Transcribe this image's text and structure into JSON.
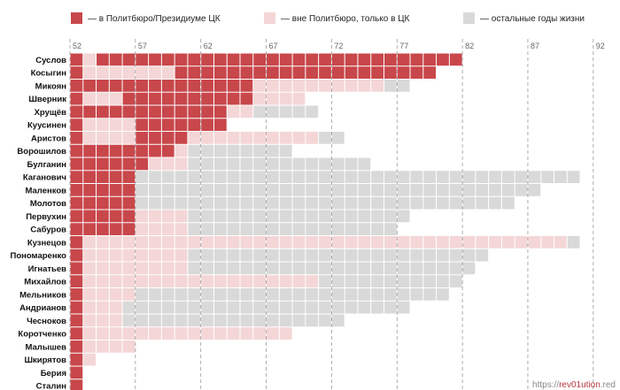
{
  "chart_data": {
    "type": "heatmap",
    "legend": [
      {
        "key": "pb",
        "label": "— в Политбюро/Президиуме ЦК",
        "color": "#c8474b"
      },
      {
        "key": "ck",
        "label": "— вне Политбюро, только в ЦК",
        "color": "#f4d6d6"
      },
      {
        "key": "life",
        "label": "— остальные годы жизни",
        "color": "#d9d9d9"
      }
    ],
    "x_ticks": [
      52,
      57,
      62,
      67,
      72,
      77,
      82,
      87,
      92
    ],
    "x_range": [
      1952,
      1992
    ],
    "rows": [
      {
        "name": "Суслов",
        "segments": [
          [
            "pb",
            1952,
            1953
          ],
          [
            "ck",
            1953,
            1954
          ],
          [
            "pb",
            1954,
            1982
          ]
        ]
      },
      {
        "name": "Косыгин",
        "segments": [
          [
            "pb",
            1952,
            1953
          ],
          [
            "ck",
            1953,
            1960
          ],
          [
            "pb",
            1960,
            1980
          ]
        ]
      },
      {
        "name": "Микоян",
        "segments": [
          [
            "pb",
            1952,
            1966
          ],
          [
            "ck",
            1966,
            1976
          ],
          [
            "life",
            1976,
            1978
          ]
        ]
      },
      {
        "name": "Шверник",
        "segments": [
          [
            "pb",
            1952,
            1953
          ],
          [
            "ck",
            1953,
            1956
          ],
          [
            "pb",
            1956,
            1966
          ],
          [
            "ck",
            1966,
            1970
          ]
        ]
      },
      {
        "name": "Хрущёв",
        "segments": [
          [
            "pb",
            1952,
            1964
          ],
          [
            "ck",
            1964,
            1966
          ],
          [
            "life",
            1966,
            1971
          ]
        ]
      },
      {
        "name": "Куусинен",
        "segments": [
          [
            "pb",
            1952,
            1953
          ],
          [
            "ck",
            1953,
            1957
          ],
          [
            "pb",
            1957,
            1964
          ]
        ]
      },
      {
        "name": "Аристов",
        "segments": [
          [
            "pb",
            1952,
            1953
          ],
          [
            "ck",
            1953,
            1957
          ],
          [
            "pb",
            1957,
            1961
          ],
          [
            "ck",
            1961,
            1971
          ],
          [
            "life",
            1971,
            1973
          ]
        ]
      },
      {
        "name": "Ворошилов",
        "segments": [
          [
            "pb",
            1952,
            1960
          ],
          [
            "ck",
            1960,
            1961
          ],
          [
            "life",
            1961,
            1969
          ]
        ]
      },
      {
        "name": "Булганин",
        "segments": [
          [
            "pb",
            1952,
            1958
          ],
          [
            "ck",
            1958,
            1961
          ],
          [
            "life",
            1961,
            1975
          ]
        ]
      },
      {
        "name": "Каганович",
        "segments": [
          [
            "pb",
            1952,
            1957
          ],
          [
            "life",
            1957,
            1991
          ]
        ]
      },
      {
        "name": "Маленков",
        "segments": [
          [
            "pb",
            1952,
            1957
          ],
          [
            "life",
            1957,
            1988
          ]
        ]
      },
      {
        "name": "Молотов",
        "segments": [
          [
            "pb",
            1952,
            1957
          ],
          [
            "life",
            1957,
            1986
          ]
        ]
      },
      {
        "name": "Первухин",
        "segments": [
          [
            "pb",
            1952,
            1957
          ],
          [
            "ck",
            1957,
            1961
          ],
          [
            "life",
            1961,
            1978
          ]
        ]
      },
      {
        "name": "Сабуров",
        "segments": [
          [
            "pb",
            1952,
            1957
          ],
          [
            "ck",
            1957,
            1961
          ],
          [
            "life",
            1961,
            1977
          ]
        ]
      },
      {
        "name": "Кузнецов",
        "segments": [
          [
            "pb",
            1952,
            1953
          ],
          [
            "ck",
            1953,
            1990
          ],
          [
            "life",
            1990,
            1991
          ]
        ]
      },
      {
        "name": "Пономаренко",
        "segments": [
          [
            "pb",
            1952,
            1953
          ],
          [
            "ck",
            1953,
            1961
          ],
          [
            "life",
            1961,
            1984
          ]
        ]
      },
      {
        "name": "Игнатьев",
        "segments": [
          [
            "pb",
            1952,
            1953
          ],
          [
            "ck",
            1953,
            1961
          ],
          [
            "life",
            1961,
            1983
          ]
        ]
      },
      {
        "name": "Михайлов",
        "segments": [
          [
            "pb",
            1952,
            1953
          ],
          [
            "ck",
            1953,
            1971
          ],
          [
            "life",
            1971,
            1982
          ]
        ]
      },
      {
        "name": "Мельников",
        "segments": [
          [
            "pb",
            1952,
            1953
          ],
          [
            "ck",
            1953,
            1957
          ],
          [
            "life",
            1957,
            1981
          ]
        ]
      },
      {
        "name": "Андрианов",
        "segments": [
          [
            "pb",
            1952,
            1953
          ],
          [
            "ck",
            1953,
            1956
          ],
          [
            "life",
            1956,
            1978
          ]
        ]
      },
      {
        "name": "Чесноков",
        "segments": [
          [
            "pb",
            1952,
            1953
          ],
          [
            "ck",
            1953,
            1956
          ],
          [
            "life",
            1956,
            1973
          ]
        ]
      },
      {
        "name": "Коротченко",
        "segments": [
          [
            "pb",
            1952,
            1953
          ],
          [
            "ck",
            1953,
            1969
          ]
        ]
      },
      {
        "name": "Малышев",
        "segments": [
          [
            "pb",
            1952,
            1953
          ],
          [
            "ck",
            1953,
            1957
          ]
        ]
      },
      {
        "name": "Шкирятов",
        "segments": [
          [
            "pb",
            1952,
            1953
          ],
          [
            "ck",
            1953,
            1954
          ]
        ]
      },
      {
        "name": "Берия",
        "segments": [
          [
            "pb",
            1952,
            1953
          ]
        ]
      },
      {
        "name": "Сталин",
        "segments": [
          [
            "pb",
            1952,
            1953
          ]
        ]
      }
    ],
    "grid": true
  },
  "credit": {
    "prefix": "https://",
    "accent": "rev01ution",
    "suffix": ".red"
  }
}
